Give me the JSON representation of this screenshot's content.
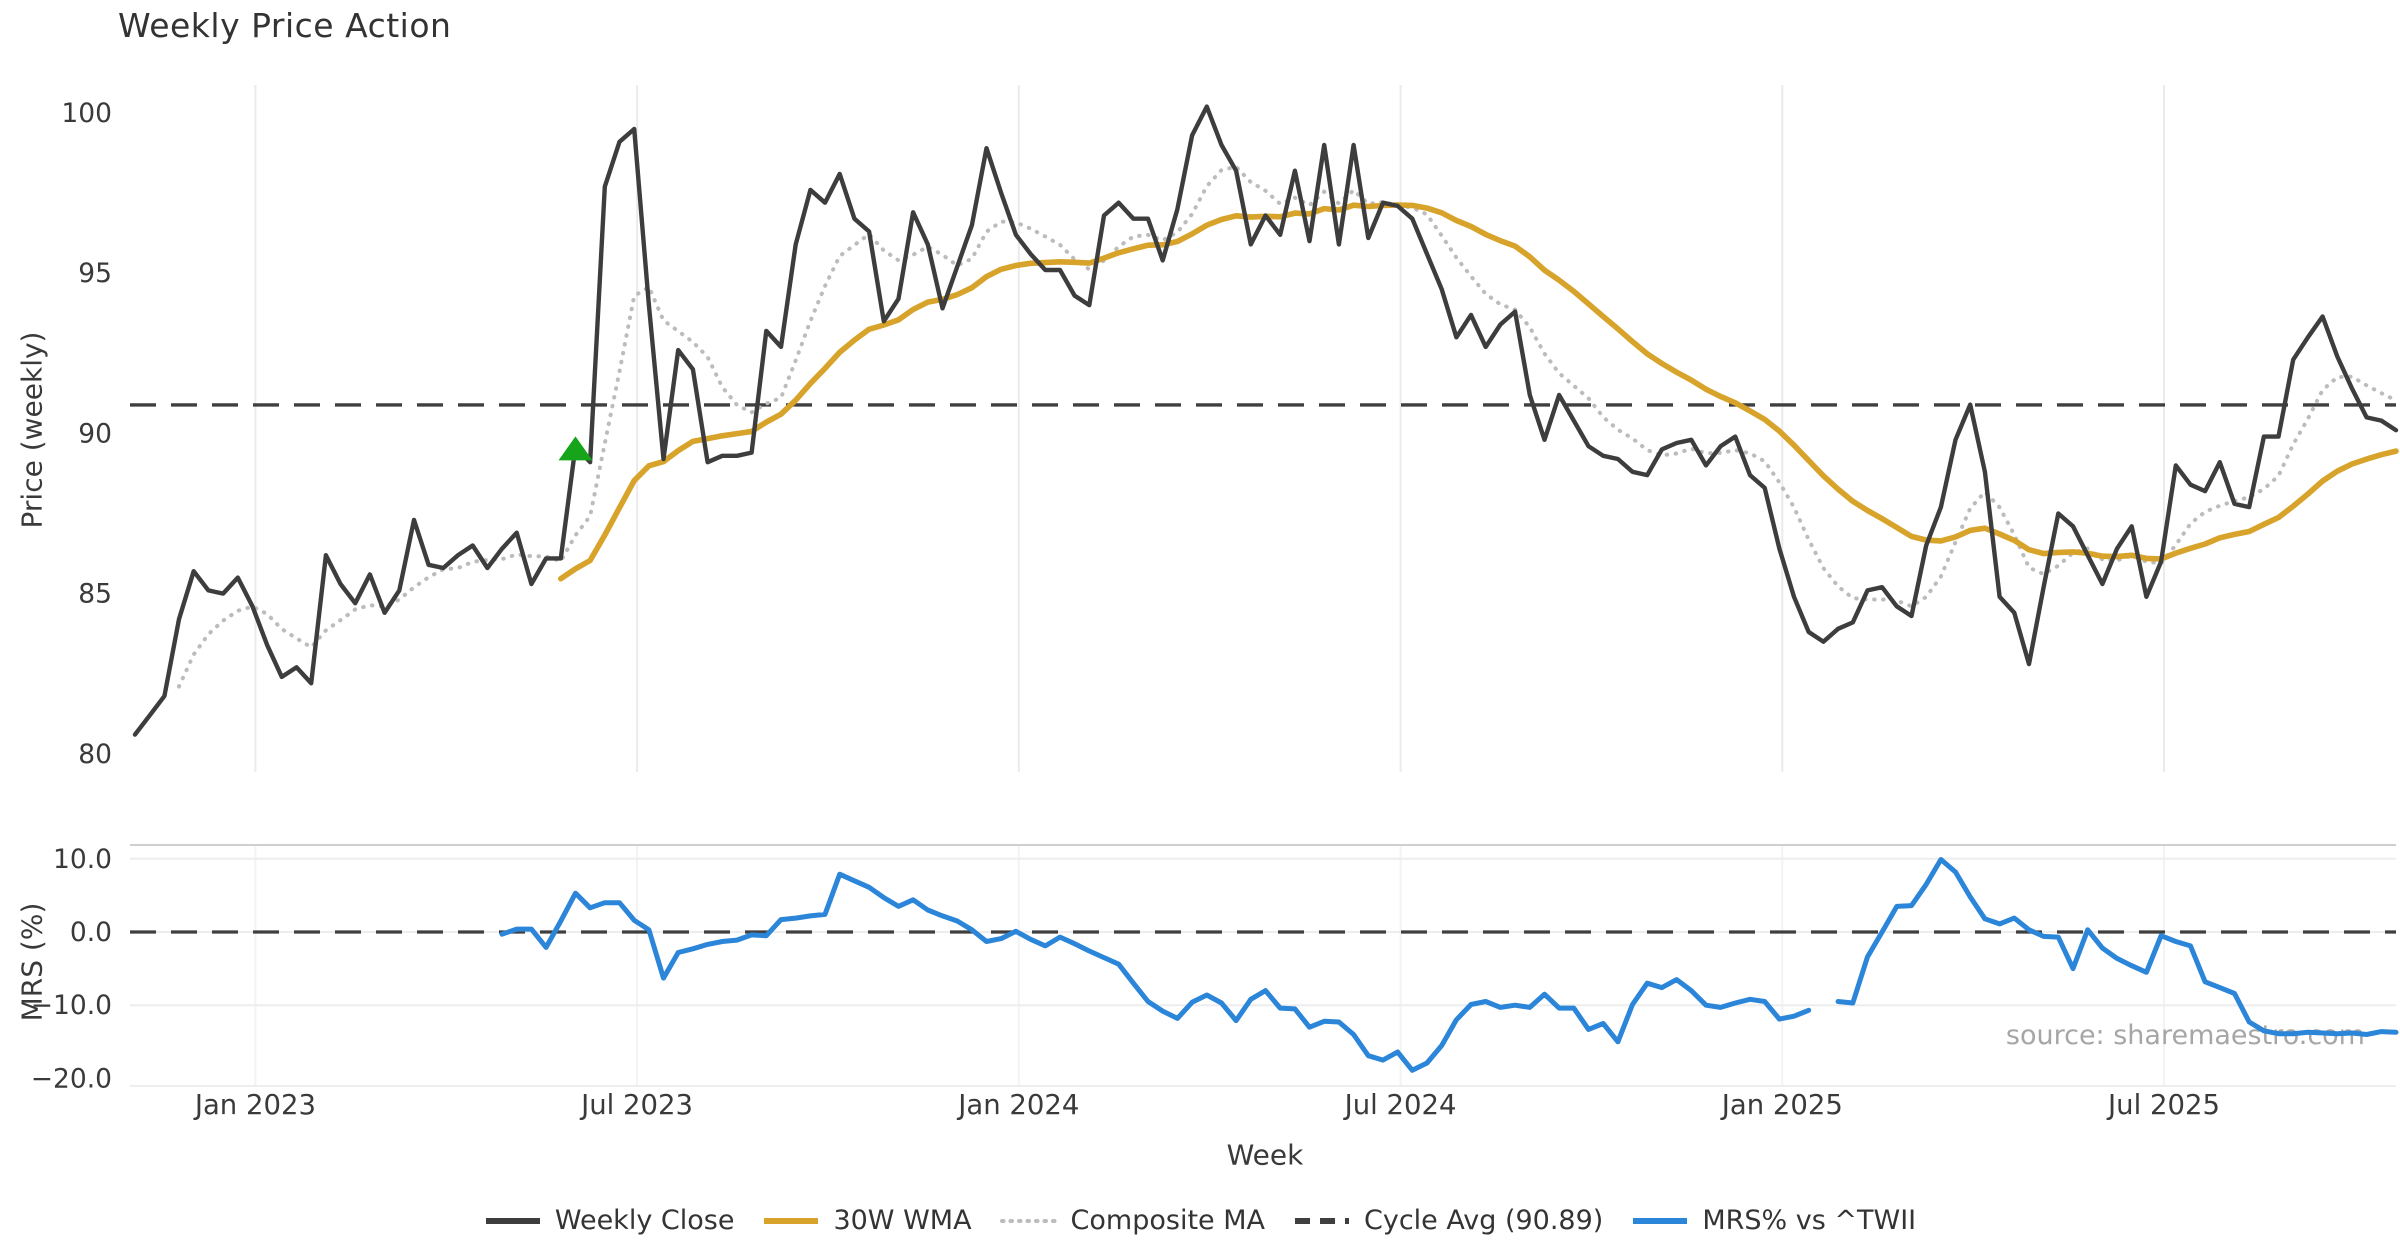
{
  "app": {
    "title": "Weekly Price Action",
    "source_note": "source: sharemaestro.com"
  },
  "legend": {
    "items": [
      {
        "label": "Weekly Close",
        "swatch": "line-solid",
        "color_key": "weekly_close"
      },
      {
        "label": "30W WMA",
        "swatch": "line-solid",
        "color_key": "wma"
      },
      {
        "label": "Composite MA",
        "swatch": "line-dotted",
        "color_key": "composite"
      },
      {
        "label": "Cycle Avg (90.89)",
        "swatch": "line-dashed",
        "color_key": "cycle_avg"
      },
      {
        "label": "MRS% vs ^TWII",
        "swatch": "line-solid",
        "color_key": "mrs"
      }
    ]
  },
  "chart_data": {
    "type": "line",
    "title": "Weekly Price Action",
    "colors": {
      "weekly_close": "#3d3d3d",
      "wma": "#d7a32a",
      "composite": "#bcbcbc",
      "cycle_avg": "#3f3f3f",
      "mrs": "#2b85d8",
      "signal_green": "#16a51a",
      "grid": "#ebebeb",
      "grid_light": "#f3f3f3",
      "spine": "#cfcfcf",
      "text": "#3a3a3a",
      "muted": "#a6a6a6"
    },
    "x_axis": {
      "label": "Week",
      "weeks_total": 154,
      "ticks": [
        {
          "week": 8.2,
          "label": "Jan 2023"
        },
        {
          "week": 34.2,
          "label": "Jul 2023"
        },
        {
          "week": 60.2,
          "label": "Jan 2024"
        },
        {
          "week": 86.2,
          "label": "Jul 2024"
        },
        {
          "week": 112.2,
          "label": "Jan 2025"
        },
        {
          "week": 138.2,
          "label": "Jul 2025"
        }
      ]
    },
    "price_panel": {
      "ylabel": "Price (weekly)",
      "ylim": [
        79.4,
        100.9
      ],
      "yticks": [
        {
          "v": 100,
          "label": "100"
        },
        {
          "v": 95,
          "label": "95"
        },
        {
          "v": 90,
          "label": "90"
        },
        {
          "v": 85,
          "label": "85"
        },
        {
          "v": 80,
          "label": "80"
        }
      ],
      "cycle_avg": 90.89,
      "signal_marker": {
        "week": 30,
        "price": 89.5,
        "shape": "triangle-up"
      },
      "derived": {
        "wma_window": 30,
        "composite_sma_windows": [
          3,
          6,
          10
        ],
        "composite_start_week": 3
      },
      "weekly_close": [
        80.6,
        81.2,
        81.8,
        84.2,
        85.7,
        85.1,
        85.0,
        85.5,
        84.6,
        83.4,
        82.4,
        82.7,
        82.2,
        86.2,
        85.3,
        84.7,
        85.6,
        84.4,
        85.1,
        87.3,
        85.9,
        85.8,
        86.2,
        86.5,
        85.8,
        86.4,
        86.9,
        85.3,
        86.1,
        86.1,
        89.6,
        89.1,
        97.7,
        99.1,
        99.5,
        94.0,
        89.2,
        92.6,
        92.0,
        89.1,
        89.3,
        89.3,
        89.4,
        93.2,
        92.7,
        95.9,
        97.6,
        97.2,
        98.1,
        96.7,
        96.3,
        93.5,
        94.2,
        96.9,
        95.9,
        93.9,
        95.2,
        96.5,
        98.9,
        97.5,
        96.2,
        95.6,
        95.1,
        95.1,
        94.3,
        94.0,
        96.8,
        97.2,
        96.7,
        96.7,
        95.4,
        97.0,
        99.3,
        100.2,
        99.0,
        98.2,
        95.9,
        96.8,
        96.2,
        98.2,
        96.0,
        99.0,
        95.9,
        99.0,
        96.1,
        97.2,
        97.1,
        96.7,
        95.6,
        94.5,
        93.0,
        93.7,
        92.7,
        93.4,
        93.8,
        91.2,
        89.8,
        91.2,
        90.4,
        89.6,
        89.3,
        89.2,
        88.8,
        88.7,
        89.5,
        89.7,
        89.8,
        89.0,
        89.6,
        89.9,
        88.7,
        88.3,
        86.4,
        84.9,
        83.8,
        83.5,
        83.9,
        84.1,
        85.1,
        85.2,
        84.6,
        84.3,
        86.5,
        87.7,
        89.8,
        90.9,
        88.8,
        84.9,
        84.4,
        82.8,
        85.2,
        87.5,
        87.1,
        86.2,
        85.3,
        86.4,
        87.1,
        84.9,
        86.0,
        89.0,
        88.4,
        88.2,
        89.1,
        87.8,
        87.7,
        89.9,
        89.9,
        92.3,
        93.0,
        93.65,
        92.4,
        91.4,
        90.5,
        90.4,
        90.1
      ]
    },
    "mrs_panel": {
      "ylabel": "MRS (%)",
      "ylim": [
        -21.0,
        11.9
      ],
      "yticks": [
        {
          "v": 10,
          "label": "10.0"
        },
        {
          "v": 0,
          "label": "0.0"
        },
        {
          "v": -10,
          "label": "−10.0"
        },
        {
          "v": -20,
          "label": "−20.0"
        }
      ],
      "zero_line": 0.0,
      "start_week": 25,
      "mrs_vs_twii": [
        -0.3,
        0.4,
        0.4,
        -2.1,
        1.5,
        5.3,
        3.3,
        4.0,
        4.0,
        1.6,
        0.3,
        -6.3,
        -2.8,
        -2.3,
        -1.7,
        -1.3,
        -1.1,
        -0.4,
        -0.5,
        1.7,
        1.9,
        2.2,
        2.4,
        7.9,
        7.0,
        6.1,
        4.7,
        3.5,
        4.4,
        3.0,
        2.2,
        1.5,
        0.3,
        -1.3,
        -0.9,
        0.1,
        -1.0,
        -1.9,
        -0.7,
        -1.6,
        -2.6,
        -3.5,
        -4.4,
        -7.0,
        -9.5,
        -10.8,
        -11.8,
        -9.6,
        -8.6,
        -9.7,
        -12.1,
        -9.2,
        -8.0,
        -10.4,
        -10.5,
        -13.0,
        -12.2,
        -12.3,
        -14.0,
        -16.9,
        -17.5,
        -16.4,
        -18.9,
        -17.9,
        -15.5,
        -12.0,
        -9.9,
        -9.5,
        -10.3,
        -10.0,
        -10.3,
        -8.5,
        -10.4,
        -10.4,
        -13.3,
        -12.5,
        -15.0,
        -9.9,
        -7.0,
        -7.6,
        -6.5,
        -8.0,
        -10.0,
        -10.3,
        -9.7,
        -9.2,
        -9.5,
        -11.9,
        -11.5,
        -10.7,
        null,
        -9.5,
        -9.7,
        -3.4,
        0.0,
        3.5,
        3.6,
        6.5,
        9.9,
        8.2,
        4.8,
        1.8,
        1.1,
        1.9,
        0.3,
        -0.6,
        -0.7,
        -5.0,
        0.3,
        -2.2,
        -3.6,
        -4.6,
        -5.5,
        -0.5,
        -1.3,
        -1.9,
        -6.8,
        -7.6,
        -8.4,
        -12.3,
        -13.5,
        -13.9,
        -13.9,
        -13.7,
        -13.8,
        -13.9,
        -13.8,
        -14.0,
        -13.6,
        -13.7
      ]
    }
  }
}
